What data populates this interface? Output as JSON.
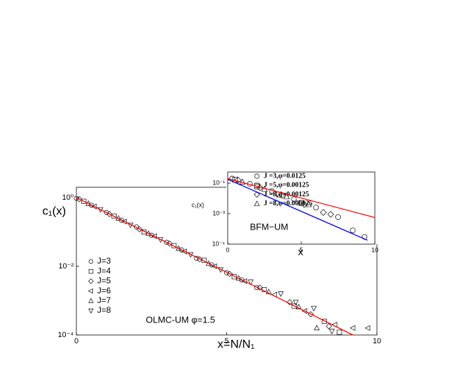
{
  "chart_data": [
    {
      "type": "scatter",
      "xlabel": "x=N/N₁",
      "ylabel": "c₁(x)",
      "annotation": "OLMC-UM φ=1.5",
      "xlim": [
        0,
        10
      ],
      "ylim": [
        0.0001,
        2
      ],
      "log_y": true,
      "xticks": [
        0,
        5,
        10
      ],
      "yticks": [
        {
          "value": 1,
          "label": "10⁰"
        },
        {
          "value": 0.01,
          "label": "10⁻²"
        },
        {
          "value": 0.0001,
          "label": "10⁻⁴"
        }
      ],
      "series": [
        {
          "name": "J=3",
          "marker": "circle",
          "color": "#000000",
          "x": [
            0,
            0.5,
            1,
            1.5,
            2,
            2.5,
            3,
            3.5,
            4,
            4.5,
            5,
            5.5,
            6
          ],
          "values": [
            0.95,
            0.6,
            0.37,
            0.22,
            0.14,
            0.08,
            0.05,
            0.03,
            0.017,
            0.011,
            0.0065,
            0.004,
            0.0024
          ]
        },
        {
          "name": "J=4",
          "marker": "square",
          "color": "#000000",
          "x": [
            0.25,
            1.25,
            2.25,
            3.25,
            4.25,
            5.25,
            6.25,
            7.25,
            8.25,
            8.75
          ],
          "values": [
            0.78,
            0.29,
            0.1,
            0.04,
            0.015,
            0.005,
            0.0021,
            0.0007,
            0.00025,
            0.00012
          ]
        },
        {
          "name": "J=5",
          "marker": "diamond",
          "color": "#000000",
          "x": [
            0.1,
            1.1,
            2.1,
            3.1,
            4.1,
            5.1,
            6.1,
            7.1,
            7.8,
            8.4
          ],
          "values": [
            0.9,
            0.33,
            0.12,
            0.046,
            0.016,
            0.006,
            0.0024,
            0.0009,
            0.0004,
            0.00018
          ]
        },
        {
          "name": "J=6",
          "marker": "tri-left",
          "color": "#000000",
          "x": [
            0.6,
            1.6,
            2.6,
            3.6,
            4.6,
            5.6,
            6.6,
            7.6,
            8.6,
            9.2,
            9.7
          ],
          "values": [
            0.55,
            0.2,
            0.075,
            0.027,
            0.01,
            0.0037,
            0.0015,
            0.0005,
            0.0002,
            0.00016,
            0.00016
          ]
        },
        {
          "name": "J=7",
          "marker": "tri-up",
          "color": "#000000",
          "x": [
            0.4,
            1.4,
            2.4,
            3.4,
            4.4,
            5.4,
            6.4,
            7.4,
            8
          ],
          "values": [
            0.67,
            0.25,
            0.09,
            0.033,
            0.012,
            0.0045,
            0.0018,
            0.00065,
            0.00016
          ]
        },
        {
          "name": "J=8",
          "marker": "tri-down",
          "color": "#000000",
          "x": [
            0.8,
            1.8,
            2.8,
            3.8,
            4.8,
            5.8,
            6.8,
            7.3,
            7.9,
            8.5
          ],
          "values": [
            0.45,
            0.16,
            0.06,
            0.022,
            0.008,
            0.0035,
            0.0016,
            0.0009,
            0.0006,
            0.00013
          ]
        }
      ],
      "lines": [
        {
          "color": "#ff0000",
          "x": [
            0,
            9.2
          ],
          "values": [
            1,
            0.0001
          ]
        }
      ]
    },
    {
      "type": "scatter",
      "xlabel": "x",
      "ylabel": "c₁(x)",
      "annotation": "BFM−UM",
      "xlim": [
        0,
        10
      ],
      "ylim": [
        1e-05,
        0.54
      ],
      "log_y": true,
      "xticks": [
        0,
        5,
        10
      ],
      "yticks": [
        {
          "value": 0.1,
          "label": "10⁻¹"
        },
        {
          "value": 0.001,
          "label": "10⁻³"
        },
        {
          "value": 1e-05,
          "label": "10⁻⁵"
        }
      ],
      "series": [
        {
          "name": "J =3,φ=0.0125",
          "marker": "circle",
          "color": "#000000",
          "x": [
            0.3,
            1.5,
            3,
            4.5,
            6,
            7.5,
            8.5,
            9.3
          ],
          "values": [
            0.2,
            0.09,
            0.03,
            0.009,
            0.0025,
            0.0006,
            8e-05,
            3e-05
          ]
        },
        {
          "name": "J =5,φ=0.00125",
          "marker": "square",
          "color": "#000000",
          "x": [
            0.5,
            2,
            3.5,
            5
          ],
          "values": [
            0.17,
            0.06,
            0.018,
            0.005
          ]
        },
        {
          "name": "J =8,φ=0.00125",
          "marker": "diamond",
          "color": "#000000",
          "x": [
            0.7,
            2.2,
            3.7,
            5.2,
            6.5,
            7
          ],
          "values": [
            0.16,
            0.05,
            0.016,
            0.004,
            0.0012,
            0.0009
          ]
        },
        {
          "name": "J =8,φ=0.000625",
          "marker": "tri-up",
          "color": "#000000",
          "x": [
            1,
            2.5,
            4,
            5.5
          ],
          "values": [
            0.12,
            0.04,
            0.013,
            0.004
          ]
        }
      ],
      "lines": [
        {
          "color": "#ff0000",
          "x": [
            0,
            10
          ],
          "values": [
            0.2,
            0.00056
          ]
        },
        {
          "color": "#0000ff",
          "x": [
            0,
            9.5
          ],
          "values": [
            0.18,
            1.8e-05
          ]
        }
      ]
    }
  ]
}
